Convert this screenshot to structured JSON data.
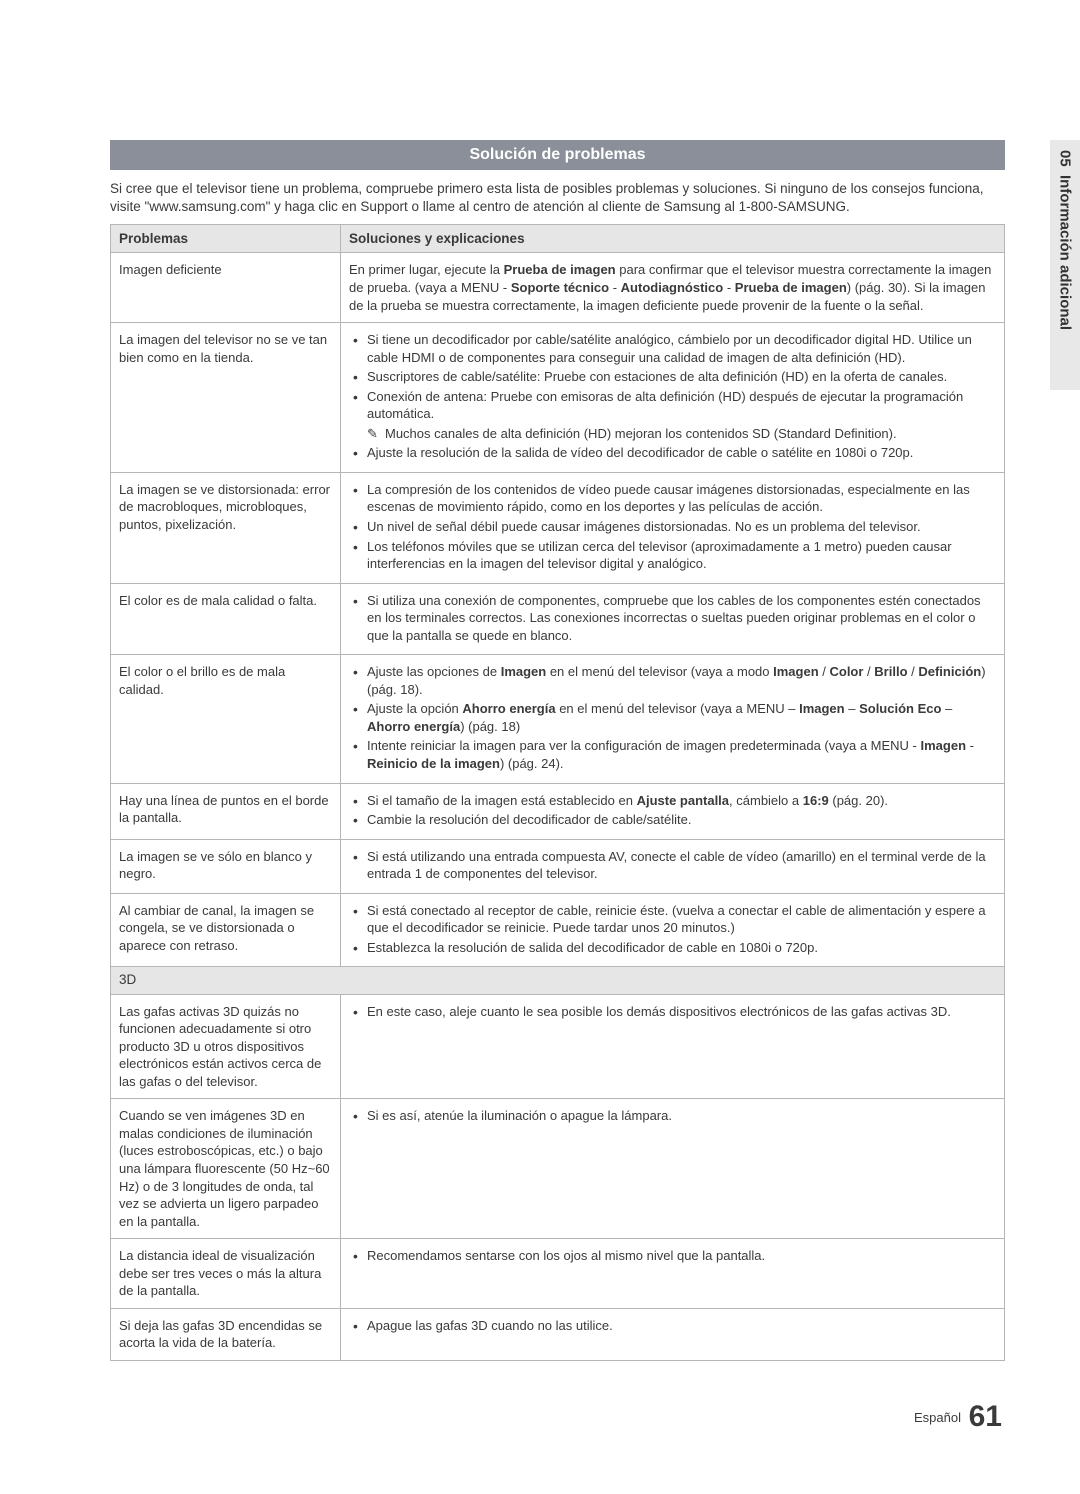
{
  "sideTab": {
    "num": "05",
    "label": "Información adicional"
  },
  "sectionTitle": "Solución de problemas",
  "intro": "Si cree que el televisor tiene un problema, compruebe primero esta lista de posibles problemas y soluciones. Si ninguno de los consejos funciona, visite \"www.samsung.com\" y haga clic en Support o llame al centro de atención al cliente de Samsung al 1-800-SAMSUNG.",
  "headers": {
    "col1": "Problemas",
    "col2": "Soluciones y explicaciones"
  },
  "rows": [
    {
      "problem": "Imagen deficiente",
      "solution_html": "En primer lugar, ejecute la <b>Prueba de imagen</b> para confirmar que el televisor muestra correctamente la imagen de prueba. (vaya a MENU - <b>Soporte técnico</b> - <b>Autodiagnóstico</b> - <b>Prueba de imagen</b>) (pág. 30). Si la imagen de la prueba se muestra correctamente, la imagen deficiente puede provenir de la fuente o la señal."
    },
    {
      "problem": "La imagen del televisor no se ve tan bien como en la tienda.",
      "solution_html": "<ul><li>Si tiene un decodificador por cable/satélite analógico, cámbielo por un decodificador digital HD. Utilice un cable HDMI o de componentes para conseguir una calidad de imagen de alta definición (HD).</li><li>Suscriptores de cable/satélite: Pruebe con estaciones de alta definición (HD) en la oferta de canales.</li><li>Conexión de antena: Pruebe con emisoras de alta definición (HD) después de ejecutar la programación automática.</li></ul><div class=\"note\">Muchos canales de alta definición (HD) mejoran los contenidos SD (Standard Definition).</div><ul><li>Ajuste la resolución de la salida de vídeo del decodificador de cable o satélite en 1080i o 720p.</li></ul>"
    },
    {
      "problem": "La imagen se ve distorsionada: error de macrobloques, microbloques, puntos, pixelización.",
      "solution_html": "<ul><li>La compresión de los contenidos de vídeo puede causar imágenes distorsionadas, especialmente en las escenas de movimiento rápido, como en los deportes y las películas de acción.</li><li>Un nivel de señal débil puede causar imágenes distorsionadas. No es un problema del televisor.</li><li>Los teléfonos móviles que se utilizan cerca del televisor (aproximadamente a 1 metro) pueden causar interferencias en la imagen del televisor digital y analógico.</li></ul>"
    },
    {
      "problem": "El color es de mala calidad o falta.",
      "solution_html": "<ul><li>Si utiliza una conexión de componentes, compruebe que los cables de los componentes estén conectados en los terminales correctos. Las conexiones incorrectas o sueltas pueden originar problemas en el color o que la pantalla se quede en blanco.</li></ul>"
    },
    {
      "problem": "El color o el brillo es de mala calidad.",
      "solution_html": "<ul><li>Ajuste las opciones de <b>Imagen</b> en el menú del televisor (vaya a modo <b>Imagen</b> / <b>Color</b> / <b>Brillo</b> / <b>Definición</b>) (pág. 18).</li><li>Ajuste la opción <b>Ahorro energía</b> en el menú del televisor (vaya a MENU – <b>Imagen</b> – <b>Solución Eco</b> – <b>Ahorro energía</b>) (pág. 18)</li><li>Intente reiniciar la imagen para ver la configuración de imagen predeterminada (vaya a MENU - <b>Imagen</b> - <b>Reinicio de la imagen</b>) (pág. 24).</li></ul>"
    },
    {
      "problem": "Hay una línea de puntos en el borde la pantalla.",
      "solution_html": "<ul><li>Si el tamaño de la imagen está establecido en <b>Ajuste pantalla</b>, cámbielo a <b>16:9</b> (pág. 20).</li><li>Cambie la resolución del decodificador de cable/satélite.</li></ul>"
    },
    {
      "problem": "La imagen se ve sólo en blanco y negro.",
      "solution_html": "<ul><li>Si está utilizando una entrada compuesta AV, conecte el cable de vídeo (amarillo) en el terminal verde de la entrada 1 de componentes del televisor.</li></ul>"
    },
    {
      "problem": "Al cambiar de canal, la imagen se congela, se ve distorsionada o aparece con retraso.",
      "solution_html": "<ul><li>Si está conectado al receptor de cable, reinicie éste. (vuelva a conectar el cable de alimentación y espere a que el decodificador se reinicie. Puede tardar unos 20 minutos.)</li><li>Establezca la resolución de salida del decodificador de cable en 1080i o 720p.</li></ul>"
    }
  ],
  "subheader3D": "3D",
  "rows3d": [
    {
      "problem": "Las gafas activas 3D quizás no funcionen adecuadamente si otro producto 3D u otros dispositivos electrónicos están activos cerca de las gafas o del televisor.",
      "solution_html": "<ul><li>En este caso, aleje cuanto le sea posible los demás dispositivos electrónicos de las gafas activas 3D.</li></ul>"
    },
    {
      "problem": "Cuando se ven imágenes 3D en malas condiciones de iluminación (luces estroboscópicas, etc.) o bajo una lámpara fluorescente (50 Hz~60 Hz) o de 3 longitudes de onda, tal vez se advierta un ligero parpadeo en la pantalla.",
      "solution_html": "<ul><li>Si es así, atenúe la iluminación o apague la lámpara.</li></ul>"
    },
    {
      "problem": "La distancia ideal de visualización debe ser tres veces o más la altura de la pantalla.",
      "solution_html": "<ul><li>Recomendamos sentarse con los ojos al mismo nivel que la pantalla.</li></ul>"
    },
    {
      "problem": "Si deja las gafas 3D encendidas se acorta la vida de la batería.",
      "solution_html": "<ul><li>Apague las gafas 3D cuando no las utilice.</li></ul>"
    }
  ],
  "footer": {
    "lang": "Español",
    "page": "61"
  }
}
